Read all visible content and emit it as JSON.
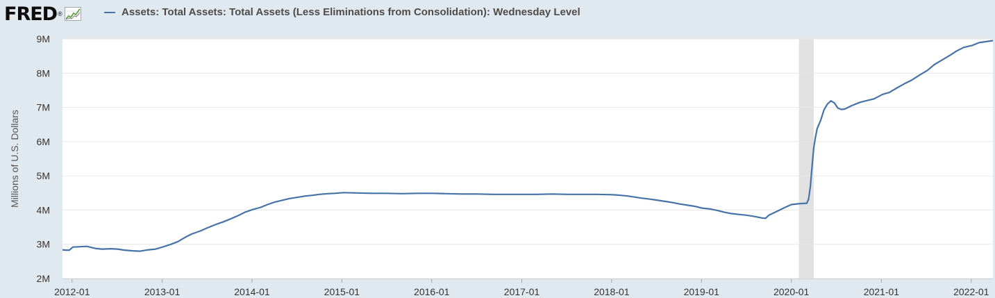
{
  "header": {
    "logo_text": "FRED",
    "logo_mark": "®"
  },
  "colors": {
    "background": "#e1e9f0",
    "plot_background": "#ffffff",
    "series_line": "#4572a7",
    "recession_band": "#e1e1e1",
    "grid": "#e6e6e6"
  },
  "chart_data": {
    "type": "line",
    "title": "",
    "xlabel": "",
    "ylabel": "Millions of U.S. Dollars",
    "ylim": [
      2000000,
      9000000
    ],
    "yticks": [
      2000000,
      3000000,
      4000000,
      5000000,
      6000000,
      7000000,
      8000000,
      9000000
    ],
    "ytick_labels": [
      "2M",
      "3M",
      "4M",
      "5M",
      "6M",
      "7M",
      "8M",
      "9M"
    ],
    "xlim": [
      "2011-11-23",
      "2022-03-30"
    ],
    "xtick_labels": [
      "2012-01",
      "2013-01",
      "2014-01",
      "2015-01",
      "2016-01",
      "2017-01",
      "2018-01",
      "2019-01",
      "2020-01",
      "2021-01",
      "2022-01"
    ],
    "xticks": [
      "2012-01-01",
      "2013-01-01",
      "2014-01-01",
      "2015-01-01",
      "2016-01-01",
      "2017-01-01",
      "2018-01-01",
      "2019-01-01",
      "2020-01-01",
      "2021-01-01",
      "2022-01-01"
    ],
    "grid": true,
    "legend": "top-left",
    "shaded_periods": [
      {
        "start": "2020-02-01",
        "end": "2020-04-01"
      }
    ],
    "series": [
      {
        "name": "Assets: Total Assets: Total Assets (Less Eliminations from Consolidation): Wednesday Level",
        "x": [
          "2011-11-23",
          "2011-12-07",
          "2011-12-21",
          "2012-01-04",
          "2012-02-01",
          "2012-03-01",
          "2012-04-04",
          "2012-05-02",
          "2012-06-06",
          "2012-07-04",
          "2012-08-01",
          "2012-09-05",
          "2012-10-03",
          "2012-11-07",
          "2012-12-05",
          "2013-01-02",
          "2013-02-06",
          "2013-03-06",
          "2013-04-03",
          "2013-05-01",
          "2013-06-05",
          "2013-07-03",
          "2013-08-07",
          "2013-09-04",
          "2013-10-02",
          "2013-11-06",
          "2013-12-04",
          "2014-01-01",
          "2014-02-05",
          "2014-03-05",
          "2014-04-02",
          "2014-05-07",
          "2014-06-04",
          "2014-07-02",
          "2014-08-06",
          "2014-09-03",
          "2014-10-01",
          "2014-11-05",
          "2014-12-03",
          "2015-01-07",
          "2015-03-04",
          "2015-05-06",
          "2015-07-01",
          "2015-09-02",
          "2015-11-04",
          "2016-01-06",
          "2016-03-02",
          "2016-05-04",
          "2016-07-06",
          "2016-09-07",
          "2016-11-02",
          "2017-01-04",
          "2017-03-01",
          "2017-05-03",
          "2017-07-05",
          "2017-09-06",
          "2017-11-01",
          "2018-01-03",
          "2018-02-07",
          "2018-03-07",
          "2018-04-04",
          "2018-05-02",
          "2018-06-06",
          "2018-07-04",
          "2018-08-01",
          "2018-09-05",
          "2018-10-03",
          "2018-11-07",
          "2018-12-05",
          "2019-01-02",
          "2019-02-06",
          "2019-03-06",
          "2019-04-03",
          "2019-05-01",
          "2019-06-05",
          "2019-07-03",
          "2019-08-07",
          "2019-09-04",
          "2019-09-18",
          "2019-10-02",
          "2019-11-06",
          "2019-12-04",
          "2020-01-01",
          "2020-02-05",
          "2020-03-04",
          "2020-03-11",
          "2020-03-18",
          "2020-03-25",
          "2020-04-01",
          "2020-04-08",
          "2020-04-15",
          "2020-04-29",
          "2020-05-13",
          "2020-05-27",
          "2020-06-10",
          "2020-06-24",
          "2020-07-08",
          "2020-07-22",
          "2020-08-05",
          "2020-09-02",
          "2020-10-07",
          "2020-11-04",
          "2020-12-02",
          "2021-01-06",
          "2021-02-03",
          "2021-03-03",
          "2021-04-07",
          "2021-05-05",
          "2021-06-02",
          "2021-07-07",
          "2021-08-04",
          "2021-09-01",
          "2021-10-06",
          "2021-11-03",
          "2021-12-01",
          "2022-01-05",
          "2022-02-02",
          "2022-03-02",
          "2022-03-30"
        ],
        "values": [
          2840000,
          2830000,
          2830000,
          2920000,
          2930000,
          2940000,
          2880000,
          2860000,
          2870000,
          2860000,
          2830000,
          2810000,
          2800000,
          2840000,
          2860000,
          2920000,
          3000000,
          3080000,
          3200000,
          3300000,
          3390000,
          3480000,
          3580000,
          3650000,
          3730000,
          3840000,
          3940000,
          4010000,
          4080000,
          4160000,
          4230000,
          4290000,
          4340000,
          4370000,
          4410000,
          4430000,
          4460000,
          4480000,
          4490000,
          4510000,
          4500000,
          4490000,
          4490000,
          4480000,
          4490000,
          4490000,
          4480000,
          4470000,
          4470000,
          4460000,
          4460000,
          4460000,
          4460000,
          4470000,
          4460000,
          4460000,
          4460000,
          4450000,
          4430000,
          4410000,
          4380000,
          4350000,
          4320000,
          4290000,
          4260000,
          4220000,
          4180000,
          4140000,
          4110000,
          4060000,
          4030000,
          3990000,
          3940000,
          3900000,
          3870000,
          3850000,
          3810000,
          3770000,
          3760000,
          3850000,
          3970000,
          4070000,
          4160000,
          4190000,
          4200000,
          4320000,
          4670000,
          5250000,
          5810000,
          6130000,
          6380000,
          6620000,
          6930000,
          7100000,
          7190000,
          7130000,
          6980000,
          6940000,
          6950000,
          7050000,
          7150000,
          7200000,
          7250000,
          7380000,
          7440000,
          7560000,
          7700000,
          7800000,
          7930000,
          8080000,
          8250000,
          8370000,
          8520000,
          8650000,
          8750000,
          8810000,
          8890000,
          8920000,
          8950000
        ]
      }
    ]
  }
}
